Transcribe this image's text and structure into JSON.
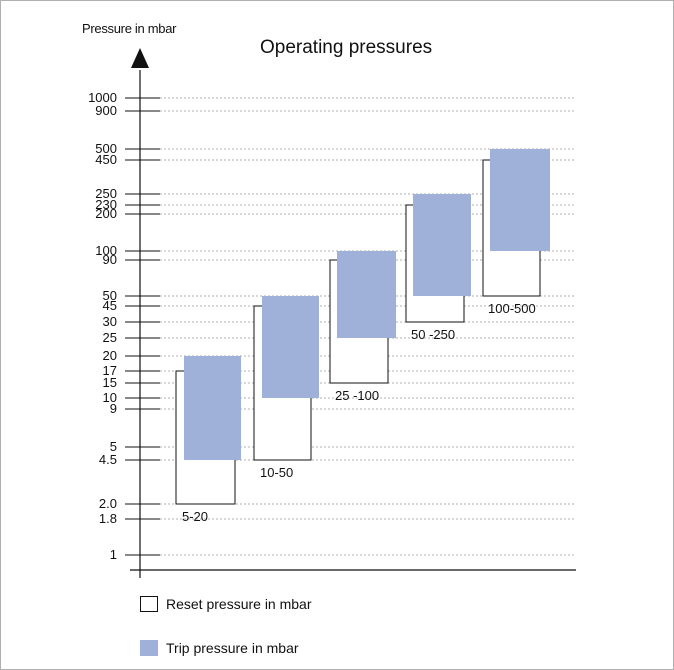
{
  "chart_data": {
    "type": "bar",
    "title": "Operating pressures",
    "ylabel": "Pressure in mbar",
    "y_ticks": [
      "1000",
      "900",
      "500",
      "450",
      "250",
      "230",
      "200",
      "100",
      "90",
      "50",
      "45",
      "30",
      "25",
      "20",
      "17",
      "15",
      "10",
      "9",
      "5",
      "4.5",
      "2.0",
      "1.8",
      "1"
    ],
    "categories": [
      "5-20",
      "10-50",
      "25 -100",
      "50 -250",
      "100-500"
    ],
    "series": [
      {
        "name": "Reset pressure in mbar",
        "ranges": [
          [
            2.0,
            17
          ],
          [
            4.5,
            45
          ],
          [
            15,
            90
          ],
          [
            30,
            230
          ],
          [
            50,
            450
          ]
        ]
      },
      {
        "name": "Trip pressure in mbar",
        "ranges": [
          [
            4.5,
            20
          ],
          [
            10,
            50
          ],
          [
            25,
            100
          ],
          [
            50,
            250
          ],
          [
            100,
            500
          ]
        ]
      }
    ],
    "grid": true,
    "colors": {
      "reset_fill": "#ffffff",
      "trip_fill": "#9fb0d9",
      "grid": "#999999",
      "axis": "#111111"
    }
  }
}
